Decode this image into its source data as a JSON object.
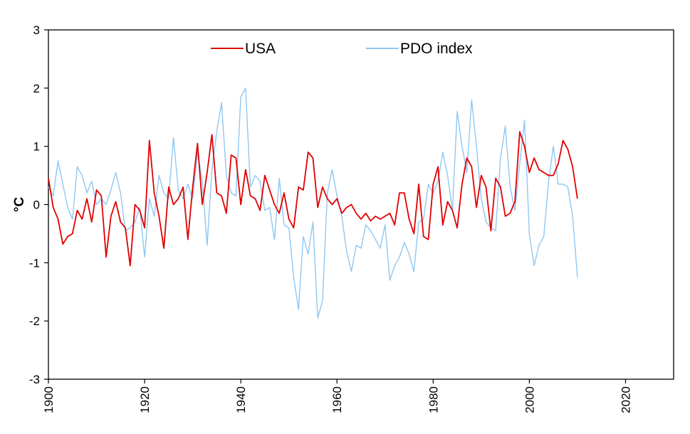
{
  "chart_data": {
    "type": "line",
    "title": "",
    "xlabel": "",
    "ylabel": "°C",
    "xlim": [
      1900,
      2030
    ],
    "ylim": [
      -3,
      3
    ],
    "x_ticks": [
      1900,
      1920,
      1940,
      1960,
      1980,
      2000,
      2020
    ],
    "y_ticks": [
      -3,
      -2,
      -1,
      0,
      1,
      2,
      3
    ],
    "grid": false,
    "legend_position": "top",
    "x_start": 1900,
    "series": [
      {
        "name": "USA",
        "color": "#e00000",
        "values": [
          0.45,
          -0.05,
          -0.25,
          -0.68,
          -0.55,
          -0.5,
          -0.1,
          -0.25,
          0.1,
          -0.3,
          0.25,
          0.15,
          -0.9,
          -0.2,
          0.05,
          -0.3,
          -0.4,
          -1.05,
          0.0,
          -0.1,
          -0.4,
          1.1,
          0.2,
          -0.2,
          -0.75,
          0.3,
          0.0,
          0.1,
          0.3,
          -0.6,
          0.3,
          1.05,
          0.0,
          0.55,
          1.2,
          0.2,
          0.15,
          -0.15,
          0.85,
          0.8,
          0.0,
          0.6,
          0.15,
          0.1,
          -0.1,
          0.5,
          0.25,
          0.0,
          -0.15,
          0.2,
          -0.25,
          -0.4,
          0.3,
          0.25,
          0.9,
          0.8,
          -0.05,
          0.3,
          0.1,
          0.0,
          0.1,
          -0.15,
          -0.05,
          -0.0,
          -0.15,
          -0.25,
          -0.15,
          -0.28,
          -0.2,
          -0.25,
          -0.2,
          -0.15,
          -0.35,
          0.2,
          0.2,
          -0.25,
          -0.5,
          0.35,
          -0.55,
          -0.6,
          0.35,
          0.65,
          -0.35,
          0.05,
          -0.1,
          -0.4,
          0.35,
          0.8,
          0.65,
          -0.05,
          0.5,
          0.3,
          -0.45,
          0.45,
          0.3,
          -0.2,
          -0.15,
          0.05,
          1.25,
          1.0,
          0.55,
          0.8,
          0.6,
          0.55,
          0.5,
          0.5,
          0.7,
          1.1,
          0.95,
          0.65,
          0.1
        ]
      },
      {
        "name": "PDO index",
        "color": "#8fc7f2",
        "values": [
          0.3,
          0.15,
          0.75,
          0.35,
          -0.05,
          -0.25,
          0.65,
          0.5,
          0.2,
          0.4,
          0.0,
          0.1,
          0.0,
          0.25,
          0.55,
          0.2,
          -0.45,
          -0.4,
          -0.3,
          -0.05,
          -0.9,
          0.1,
          -0.2,
          0.5,
          0.2,
          0.1,
          1.15,
          0.25,
          0.1,
          0.35,
          0.1,
          0.9,
          0.4,
          -0.7,
          0.6,
          1.25,
          1.75,
          0.5,
          0.2,
          0.15,
          1.85,
          2.0,
          0.3,
          0.5,
          0.4,
          -0.1,
          -0.05,
          -0.6,
          0.45,
          -0.35,
          -0.4,
          -1.25,
          -1.8,
          -0.55,
          -0.85,
          -0.3,
          -1.95,
          -1.65,
          0.2,
          0.6,
          0.15,
          -0.2,
          -0.8,
          -1.15,
          -0.7,
          -0.75,
          -0.35,
          -0.45,
          -0.6,
          -0.75,
          -0.35,
          -1.3,
          -1.05,
          -0.9,
          -0.65,
          -0.85,
          -1.15,
          -0.3,
          -0.25,
          0.35,
          0.2,
          0.4,
          0.9,
          0.5,
          -0.1,
          1.6,
          1.0,
          0.55,
          1.8,
          1.0,
          0.1,
          -0.3,
          -0.4,
          -0.45,
          0.8,
          1.35,
          0.3,
          -0.1,
          0.7,
          1.45,
          -0.5,
          -1.05,
          -0.7,
          -0.55,
          0.4,
          1.0,
          0.35,
          0.35,
          0.3,
          -0.2,
          -1.25
        ]
      }
    ]
  }
}
